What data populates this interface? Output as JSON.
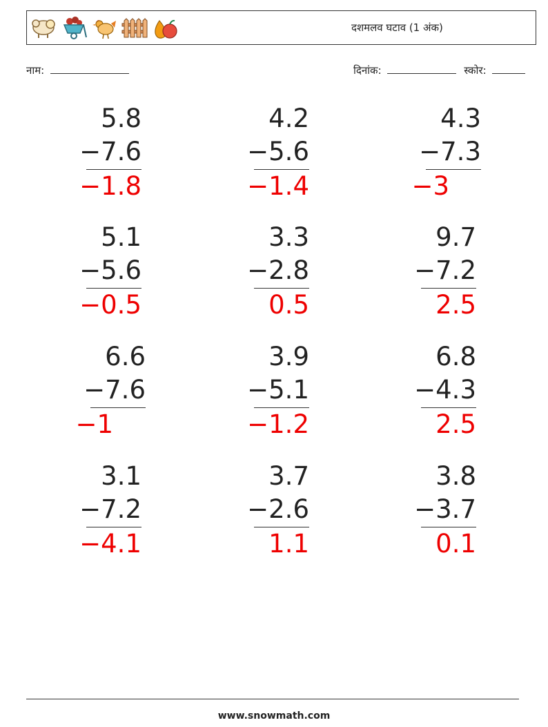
{
  "header": {
    "title": "दशमलव घटाव (1 अंक)",
    "icons": [
      "sheep-icon",
      "flower-cart-icon",
      "rooster-icon",
      "fence-icon",
      "fruit-icon"
    ]
  },
  "meta": {
    "name_label": "नाम:",
    "date_label": "दिनांक:",
    "score_label": "स्कोर:"
  },
  "problems": [
    {
      "top": "5.8",
      "sub": "−7.6",
      "ans": "−1.8"
    },
    {
      "top": "4.2",
      "sub": "−5.6",
      "ans": "−1.4"
    },
    {
      "top": "4.3",
      "sub": "−7.3",
      "ans": "−3"
    },
    {
      "top": "5.1",
      "sub": "−5.6",
      "ans": "−0.5"
    },
    {
      "top": "3.3",
      "sub": "−2.8",
      "ans": "0.5"
    },
    {
      "top": "9.7",
      "sub": "−7.2",
      "ans": "2.5"
    },
    {
      "top": "6.6",
      "sub": "−7.6",
      "ans": "−1"
    },
    {
      "top": "3.9",
      "sub": "−5.1",
      "ans": "−1.2"
    },
    {
      "top": "6.8",
      "sub": "−4.3",
      "ans": "2.5"
    },
    {
      "top": "3.1",
      "sub": "−7.2",
      "ans": "−4.1"
    },
    {
      "top": "3.7",
      "sub": "−2.6",
      "ans": "1.1"
    },
    {
      "top": "3.8",
      "sub": "−3.7",
      "ans": "0.1"
    }
  ],
  "colors": {
    "answer": "#ee0000",
    "text": "#222222"
  },
  "footer": {
    "site": "www.snowmath.com"
  }
}
